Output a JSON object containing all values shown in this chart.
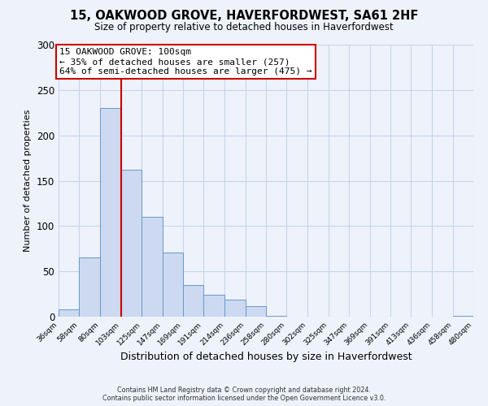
{
  "title": "15, OAKWOOD GROVE, HAVERFORDWEST, SA61 2HF",
  "subtitle": "Size of property relative to detached houses in Haverfordwest",
  "xlabel": "Distribution of detached houses by size in Haverfordwest",
  "ylabel": "Number of detached properties",
  "bar_edges": [
    36,
    58,
    80,
    103,
    125,
    147,
    169,
    191,
    214,
    236,
    258,
    280,
    302,
    325,
    347,
    369,
    391,
    413,
    436,
    458,
    480
  ],
  "bar_heights": [
    8,
    65,
    230,
    162,
    110,
    71,
    35,
    24,
    19,
    12,
    1,
    0,
    0,
    0,
    0,
    0,
    0,
    0,
    0,
    1
  ],
  "bar_color": "#ccd9f0",
  "bar_edge_color": "#6699cc",
  "vline_x": 103,
  "vline_color": "#cc0000",
  "annotation_title": "15 OAKWOOD GROVE: 100sqm",
  "annotation_line1": "← 35% of detached houses are smaller (257)",
  "annotation_line2": "64% of semi-detached houses are larger (475) →",
  "annotation_box_color": "#ffffff",
  "annotation_box_edge_color": "#cc0000",
  "ylim": [
    0,
    300
  ],
  "yticks": [
    0,
    50,
    100,
    150,
    200,
    250,
    300
  ],
  "tick_labels": [
    "36sqm",
    "58sqm",
    "80sqm",
    "103sqm",
    "125sqm",
    "147sqm",
    "169sqm",
    "191sqm",
    "214sqm",
    "236sqm",
    "258sqm",
    "280sqm",
    "302sqm",
    "325sqm",
    "347sqm",
    "369sqm",
    "391sqm",
    "413sqm",
    "436sqm",
    "458sqm",
    "480sqm"
  ],
  "footer_line1": "Contains HM Land Registry data © Crown copyright and database right 2024.",
  "footer_line2": "Contains public sector information licensed under the Open Government Licence v3.0.",
  "bg_color": "#eef2fb",
  "grid_color": "#c8d4ec",
  "title_fontsize": 10.5,
  "subtitle_fontsize": 8.5,
  "xlabel_fontsize": 9,
  "ylabel_fontsize": 8
}
